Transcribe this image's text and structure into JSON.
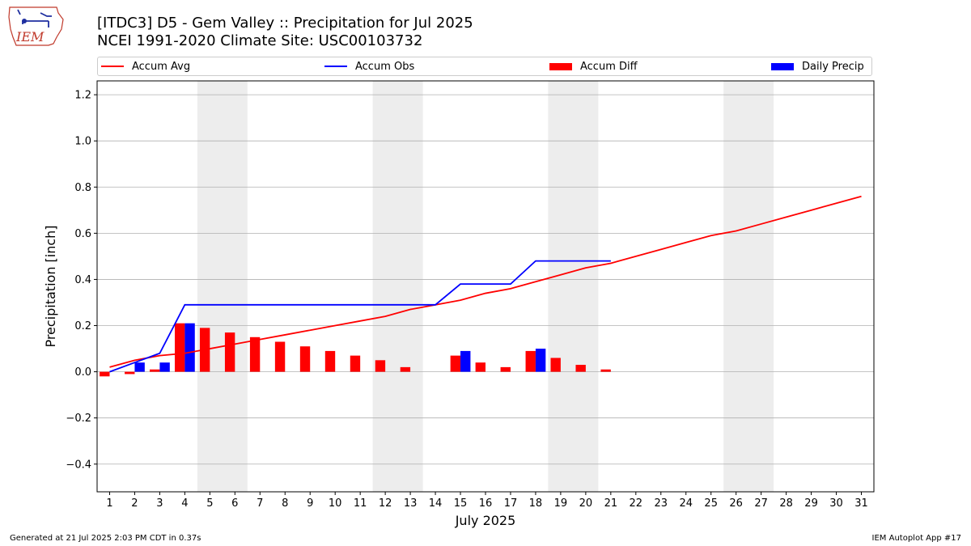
{
  "header": {
    "title_line1": "[ITDC3] D5 - Gem Valley  :: Precipitation for Jul 2025",
    "title_line2": "NCEI 1991-2020 Climate Site: USC00103732",
    "logo_text": "IEM"
  },
  "legend": {
    "accum_avg": "Accum Avg",
    "accum_obs": "Accum Obs",
    "accum_diff": "Accum Diff",
    "daily_precip": "Daily Precip"
  },
  "footer": {
    "generated": "Generated at 21 Jul 2025 2:03 PM CDT in 0.37s",
    "app": "IEM Autoplot App #17"
  },
  "colors": {
    "accum_avg": "#ff0000",
    "accum_obs": "#0000ff",
    "accum_diff": "#ff0000",
    "daily_precip": "#0000ff",
    "weekend_shade": "#ededed",
    "grid": "#b0b0b0"
  },
  "chart_data": {
    "type": "bar",
    "xlabel": "July 2025",
    "ylabel": "Precipitation [inch]",
    "ylim": [
      -0.52,
      1.26
    ],
    "xlim": [
      0.5,
      31.5
    ],
    "yticks": [
      -0.4,
      -0.2,
      0.0,
      0.2,
      0.4,
      0.6,
      0.8,
      1.0,
      1.2
    ],
    "ytick_labels": [
      "−0.4",
      "−0.2",
      "0.0",
      "0.2",
      "0.4",
      "0.6",
      "0.8",
      "1.0",
      "1.2"
    ],
    "days": [
      1,
      2,
      3,
      4,
      5,
      6,
      7,
      8,
      9,
      10,
      11,
      12,
      13,
      14,
      15,
      16,
      17,
      18,
      19,
      20,
      21,
      22,
      23,
      24,
      25,
      26,
      27,
      28,
      29,
      30,
      31
    ],
    "grid": true,
    "legend_position": "top",
    "shaded_weekends": [
      [
        5,
        6
      ],
      [
        12,
        13
      ],
      [
        19,
        20
      ],
      [
        26,
        27
      ]
    ],
    "series": [
      {
        "name": "Accum Avg",
        "kind": "line",
        "x": [
          1,
          2,
          3,
          4,
          5,
          6,
          7,
          8,
          9,
          10,
          11,
          12,
          13,
          14,
          15,
          16,
          17,
          18,
          19,
          20,
          21,
          22,
          23,
          24,
          25,
          26,
          27,
          28,
          29,
          30,
          31
        ],
        "values": [
          0.02,
          0.05,
          0.07,
          0.08,
          0.1,
          0.12,
          0.14,
          0.16,
          0.18,
          0.2,
          0.22,
          0.24,
          0.27,
          0.29,
          0.31,
          0.34,
          0.36,
          0.39,
          0.42,
          0.45,
          0.47,
          0.5,
          0.53,
          0.56,
          0.59,
          0.61,
          0.64,
          0.67,
          0.7,
          0.73,
          0.76
        ]
      },
      {
        "name": "Accum Obs",
        "kind": "line",
        "x": [
          1,
          2,
          3,
          4,
          5,
          6,
          7,
          8,
          9,
          10,
          11,
          12,
          13,
          14,
          15,
          16,
          17,
          18,
          19,
          20,
          21
        ],
        "values": [
          0.0,
          0.04,
          0.08,
          0.29,
          0.29,
          0.29,
          0.29,
          0.29,
          0.29,
          0.29,
          0.29,
          0.29,
          0.29,
          0.29,
          0.38,
          0.38,
          0.38,
          0.48,
          0.48,
          0.48,
          0.48
        ]
      },
      {
        "name": "Accum Diff",
        "kind": "bar",
        "x": [
          1,
          2,
          3,
          4,
          5,
          6,
          7,
          8,
          9,
          10,
          11,
          12,
          13,
          14,
          15,
          16,
          17,
          18,
          19,
          20,
          21
        ],
        "values": [
          -0.02,
          -0.01,
          0.01,
          0.21,
          0.19,
          0.17,
          0.15,
          0.13,
          0.11,
          0.09,
          0.07,
          0.05,
          0.02,
          0.0,
          0.07,
          0.04,
          0.02,
          0.09,
          0.06,
          0.03,
          0.01
        ]
      },
      {
        "name": "Daily Precip",
        "kind": "bar",
        "x": [
          2,
          3,
          4,
          15,
          18
        ],
        "values": [
          0.04,
          0.04,
          0.21,
          0.09,
          0.1
        ]
      }
    ]
  }
}
